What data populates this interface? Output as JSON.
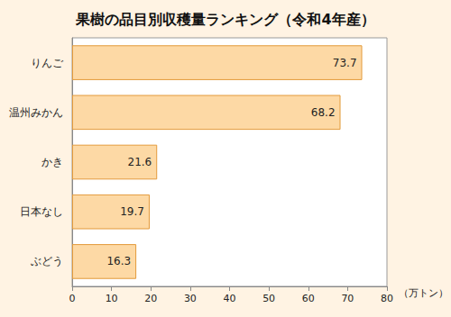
{
  "chart_data": {
    "type": "bar",
    "title": "果樹の品目別収穫量ランキング（令和4年産）",
    "x_label": "（万トン）",
    "categories": [
      "りんご",
      "温州みかん",
      "かき",
      "日本なし",
      "ぶどう"
    ],
    "values": [
      73.7,
      68.2,
      21.6,
      19.7,
      16.3
    ],
    "color": "#fdd9a5",
    "orientation": "horizontal",
    "xlim": [
      0,
      80
    ],
    "xticks": [
      0,
      10,
      20,
      30,
      40,
      50,
      60,
      70,
      80
    ],
    "grid": false,
    "data_labels": true
  }
}
